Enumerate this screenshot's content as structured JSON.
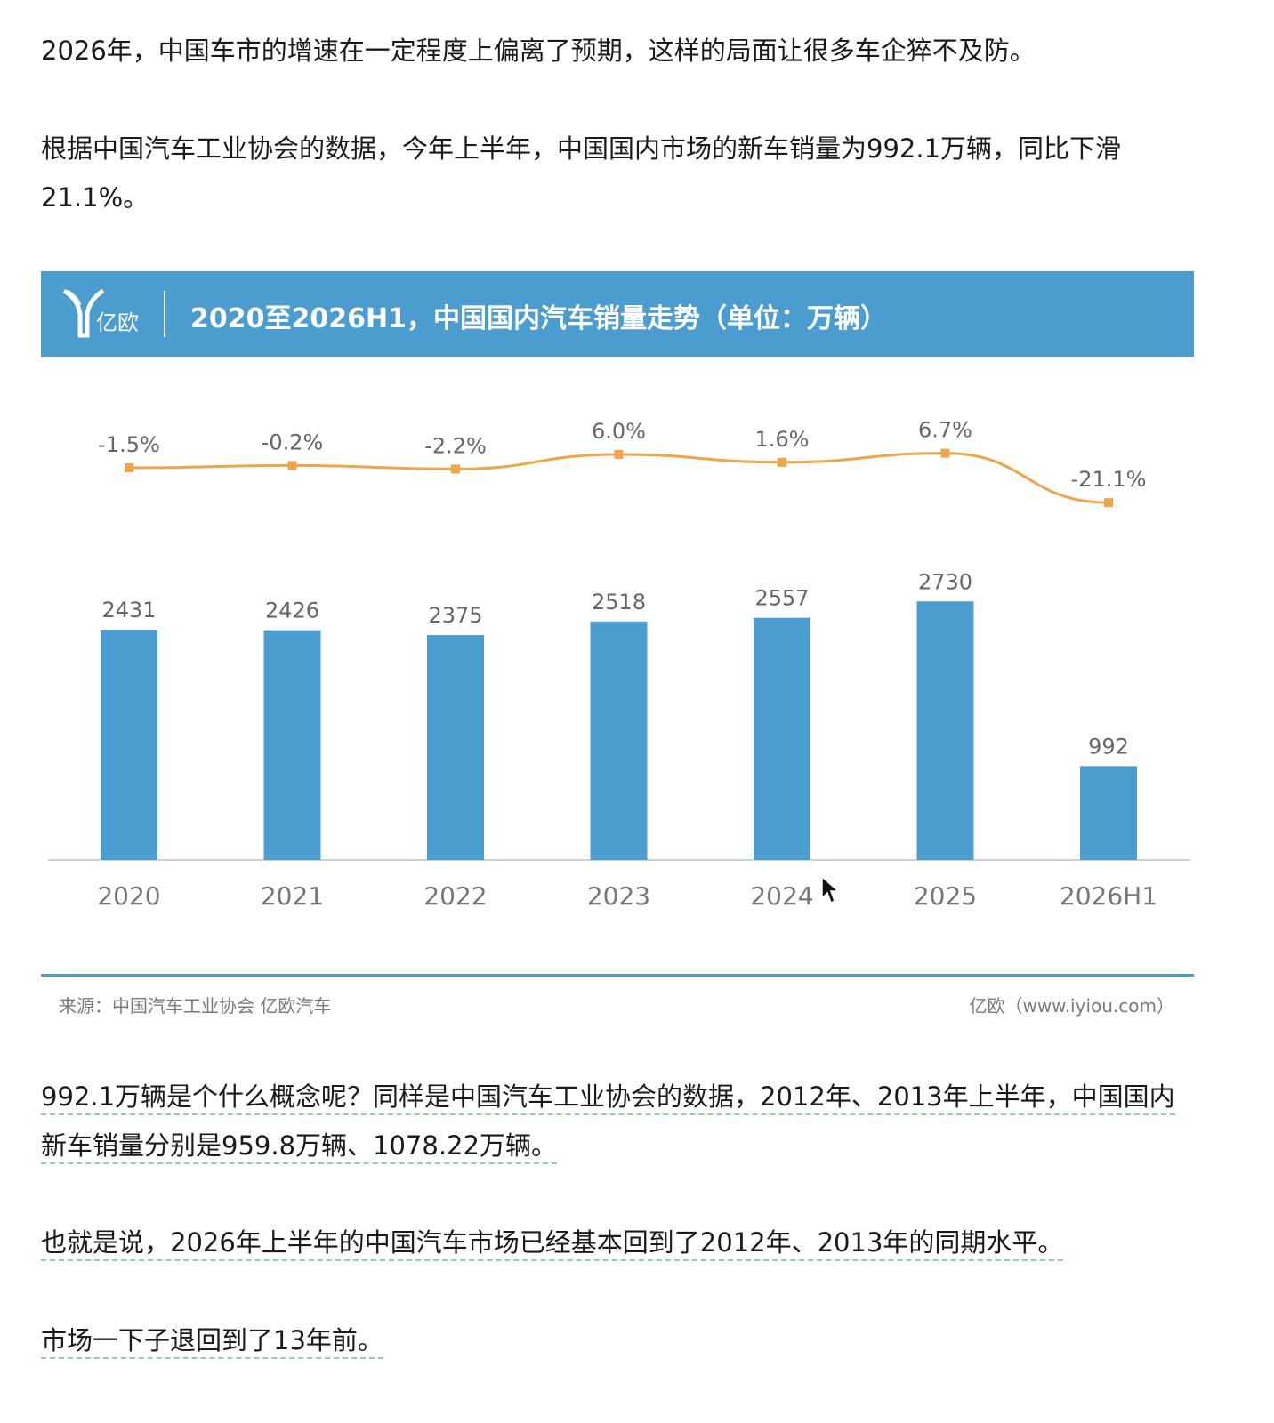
{
  "article": {
    "p1": "2026年，中国车市的增速在一定程度上偏离了预期，这样的局面让很多车企猝不及防。",
    "p2": "根据中国汽车工业协会的数据，今年上半年，中国国内市场的新车销量为992.1万辆，同比下滑21.1%。",
    "p3": "992.1万辆是个什么概念呢？同样是中国汽车工业协会的数据，2012年、2013年上半年，中国国内新车销量分别是959.8万辆、1078.22万辆。",
    "p4": "也就是说，2026年上半年的中国汽车市场已经基本回到了2012年、2013年的同期水平。",
    "p5": "市场一下子退回到了13年前。"
  },
  "figure": {
    "logo_text": "亿欧",
    "title": "2020至2026H1，中国国内汽车销量走势（单位：万辆）",
    "source": "来源：中国汽车工业协会 亿欧汽车",
    "brand_url": "亿欧（www.iyiou.com）",
    "colors": {
      "banner": "#4b9dd0",
      "bar": "#4b9dd0",
      "line": "#f0a54a",
      "text": "#666666"
    }
  },
  "chart_data": {
    "type": "bar",
    "categories": [
      "2020",
      "2021",
      "2022",
      "2023",
      "2024",
      "2025",
      "2026H1"
    ],
    "series": [
      {
        "values": [
          2431,
          2426,
          2375,
          2518,
          2557,
          2730,
          992
        ],
        "labels": [
          "2431",
          "2426",
          "2375",
          "2518",
          "2557",
          "2730",
          "992"
        ]
      },
      {
        "type": "line",
        "values": [
          -1.5,
          -0.2,
          -2.2,
          6.0,
          1.6,
          6.7,
          -21.1
        ],
        "labels": [
          "-1.5%",
          "-0.2%",
          "-2.2%",
          "6.0%",
          "1.6%",
          "6.7%",
          "-21.1%"
        ]
      }
    ],
    "grid": false,
    "legend": "none"
  },
  "icons": {
    "cursor": "mouse-pointer-icon",
    "logo": "yiou-logo-icon"
  }
}
